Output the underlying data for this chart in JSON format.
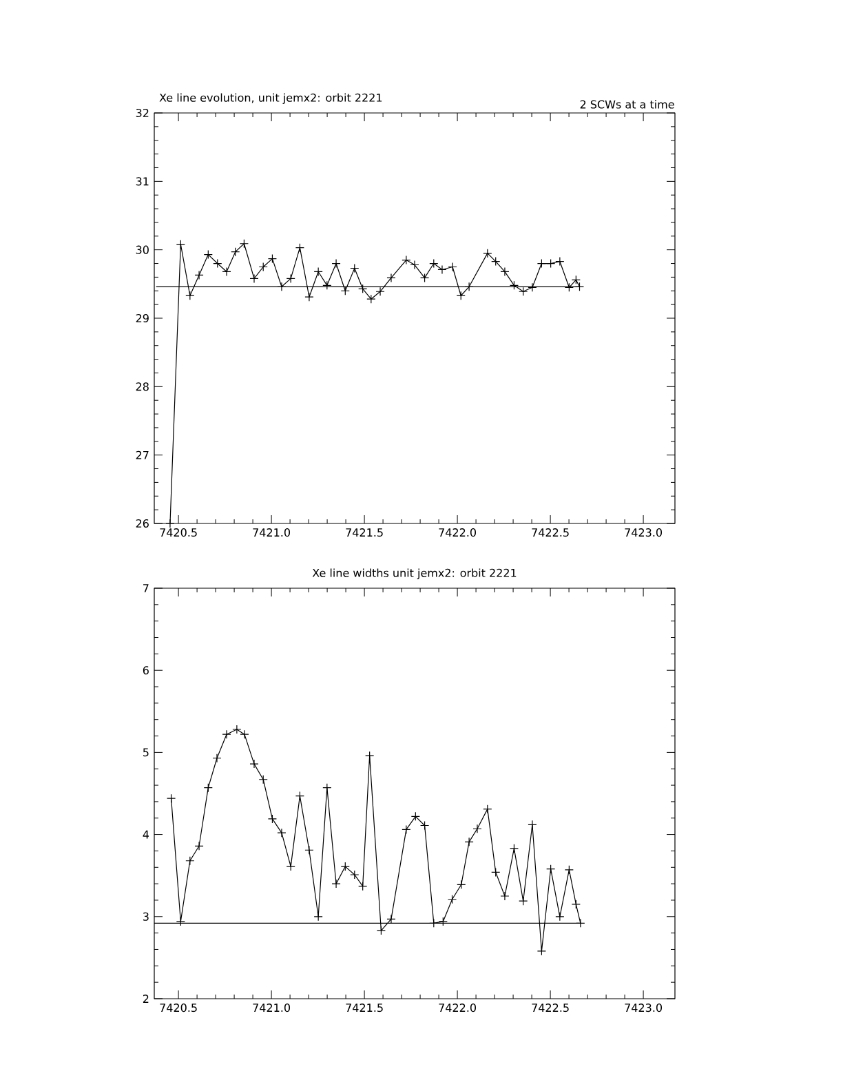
{
  "chart_data": [
    {
      "type": "line",
      "title": "Xe line evolution, unit jemx2: orbit 2221",
      "annotations": [
        "2 SCWs at a time"
      ],
      "xlim": [
        7420.37,
        7423.17
      ],
      "xticks": [
        {
          "value": 7420.5,
          "label": "7420.5"
        },
        {
          "value": 7421.0,
          "label": "7421.0"
        },
        {
          "value": 7421.5,
          "label": "7421.5"
        },
        {
          "value": 7422.0,
          "label": "7422.0"
        },
        {
          "value": 7422.5,
          "label": "7422.5"
        },
        {
          "value": 7423.0,
          "label": "7423.0"
        }
      ],
      "ylim": [
        26,
        32
      ],
      "yticks": [
        26,
        27,
        28,
        29,
        30,
        31,
        32
      ],
      "series": [
        {
          "color": "#000000",
          "marker": "cross",
          "x": [
            7420.455,
            7420.512,
            7420.562,
            7420.611,
            7420.66,
            7420.71,
            7420.759,
            7420.806,
            7420.853,
            7420.907,
            7420.956,
            7421.005,
            7421.055,
            7421.104,
            7421.153,
            7421.203,
            7421.252,
            7421.299,
            7421.348,
            7421.397,
            7421.447,
            7421.491,
            7421.536,
            7421.585,
            7421.644,
            7421.725,
            7421.77,
            7421.824,
            7421.873,
            7421.918,
            7421.974,
            7422.019,
            7422.063,
            7422.162,
            7422.206,
            7422.255,
            7422.305,
            7422.354,
            7422.403,
            7422.453,
            7422.502,
            7422.551,
            7422.601,
            7422.638,
            7422.657
          ],
          "values": [
            26.0,
            30.08,
            29.33,
            29.63,
            29.93,
            29.8,
            29.68,
            29.97,
            30.09,
            29.58,
            29.75,
            29.87,
            29.46,
            29.58,
            30.03,
            29.31,
            29.68,
            29.48,
            29.8,
            29.4,
            29.73,
            29.43,
            29.28,
            29.39,
            29.59,
            29.85,
            29.78,
            29.59,
            29.8,
            29.71,
            29.75,
            29.33,
            29.46,
            29.95,
            29.83,
            29.68,
            29.48,
            29.39,
            29.45,
            29.8,
            29.8,
            29.83,
            29.45,
            29.56,
            29.46
          ]
        },
        {
          "color": "#000000",
          "marker": "none",
          "x": [
            7420.38,
            7422.66
          ],
          "values": [
            29.46,
            29.46
          ]
        }
      ]
    },
    {
      "type": "line",
      "title": "Xe line widths unit jemx2: orbit 2221",
      "xlim": [
        7420.37,
        7423.17
      ],
      "xticks": [
        {
          "value": 7420.5,
          "label": "7420.5"
        },
        {
          "value": 7421.0,
          "label": "7421.0"
        },
        {
          "value": 7421.5,
          "label": "7421.5"
        },
        {
          "value": 7422.0,
          "label": "7422.0"
        },
        {
          "value": 7422.5,
          "label": "7422.5"
        },
        {
          "value": 7423.0,
          "label": "7423.0"
        }
      ],
      "ylim": [
        2,
        7
      ],
      "yticks": [
        2,
        3,
        4,
        5,
        6,
        7
      ],
      "series": [
        {
          "color": "#000000",
          "marker": "cross",
          "x": [
            7420.461,
            7420.512,
            7420.562,
            7420.611,
            7420.66,
            7420.707,
            7420.759,
            7420.814,
            7420.855,
            7420.907,
            7420.956,
            7421.005,
            7421.055,
            7421.104,
            7421.153,
            7421.203,
            7421.252,
            7421.299,
            7421.348,
            7421.397,
            7421.447,
            7421.491,
            7421.528,
            7421.59,
            7421.644,
            7421.725,
            7421.775,
            7421.824,
            7421.873,
            7421.923,
            7421.972,
            7422.021,
            7422.063,
            7422.107,
            7422.162,
            7422.206,
            7422.255,
            7422.305,
            7422.354,
            7422.403,
            7422.453,
            7422.502,
            7422.551,
            7422.601,
            7422.638,
            7422.662
          ],
          "values": [
            4.44,
            2.94,
            3.68,
            3.86,
            4.57,
            4.93,
            5.22,
            5.28,
            5.22,
            4.86,
            4.67,
            4.19,
            4.02,
            3.61,
            4.47,
            3.81,
            3.0,
            4.57,
            3.4,
            3.61,
            3.51,
            3.37,
            4.96,
            2.83,
            2.97,
            4.06,
            4.22,
            4.11,
            2.92,
            2.94,
            3.21,
            3.39,
            3.91,
            4.07,
            4.31,
            3.54,
            3.25,
            3.83,
            3.19,
            4.12,
            2.58,
            3.58,
            3.0,
            3.57,
            3.15,
            2.92
          ]
        },
        {
          "color": "#000000",
          "marker": "none",
          "x": [
            7420.37,
            7422.66
          ],
          "values": [
            2.92,
            2.92
          ]
        }
      ]
    }
  ]
}
